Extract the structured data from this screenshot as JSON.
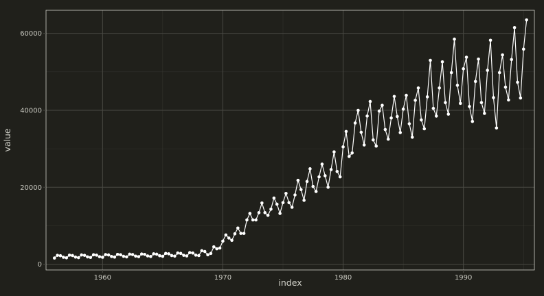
{
  "chart_data": {
    "type": "line",
    "xlabel": "index",
    "ylabel": "value",
    "xlim": [
      1955.3,
      1995.9
    ],
    "ylim": [
      -1500,
      66000
    ],
    "x_ticks": [
      1960,
      1970,
      1980,
      1990
    ],
    "x_tick_labels": [
      "1960",
      "1970",
      "1980",
      "1990"
    ],
    "y_ticks": [
      0,
      20000,
      40000,
      60000
    ],
    "y_tick_labels": [
      "0",
      "20000",
      "40000",
      "60000"
    ],
    "grid": true,
    "colors": {
      "background": "#20201b",
      "panel_border": "#d0d0c8",
      "grid": "#4a4a44",
      "line": "#ffffff",
      "points": "#ffffff"
    },
    "series": [
      {
        "frequency": "quarterly",
        "start": 1956.0,
        "values": [
          1600,
          2300,
          2200,
          1800,
          1650,
          2350,
          2250,
          1850,
          1700,
          2400,
          2300,
          1900,
          1750,
          2450,
          2350,
          1950,
          1800,
          2500,
          2400,
          2000,
          1850,
          2550,
          2450,
          2050,
          1900,
          2600,
          2500,
          2100,
          1950,
          2650,
          2550,
          2150,
          2000,
          2700,
          2600,
          2200,
          2050,
          2800,
          2700,
          2250,
          2100,
          2900,
          2800,
          2300,
          2150,
          3000,
          2900,
          2350,
          2250,
          3500,
          3300,
          2450,
          2800,
          4500,
          4000,
          4200,
          6000,
          7600,
          6800,
          6200,
          7900,
          9400,
          8000,
          8000,
          11500,
          13200,
          11500,
          11500,
          13400,
          15900,
          13400,
          12700,
          14300,
          17200,
          15600,
          13200,
          16000,
          18400,
          16000,
          14800,
          18000,
          21800,
          19400,
          16600,
          21500,
          24800,
          20200,
          18900,
          22700,
          26000,
          23000,
          20000,
          24600,
          29200,
          24100,
          22700,
          30500,
          34500,
          28000,
          28900,
          36700,
          40000,
          34300,
          31000,
          38500,
          42300,
          32300,
          30700,
          39800,
          41300,
          35000,
          32500,
          38000,
          43600,
          38400,
          34200,
          40300,
          43900,
          36500,
          33000,
          42600,
          45800,
          37500,
          35200,
          43500,
          53000,
          40500,
          38500,
          45800,
          52600,
          42000,
          39000,
          49800,
          58500,
          46500,
          41800,
          50800,
          53800,
          41000,
          37100,
          47500,
          53300,
          42000,
          39200,
          50400,
          58200,
          43300,
          35400,
          49800,
          54400,
          46000,
          42700,
          53200,
          61500,
          47300,
          43200,
          55900,
          63500
        ]
      }
    ]
  }
}
